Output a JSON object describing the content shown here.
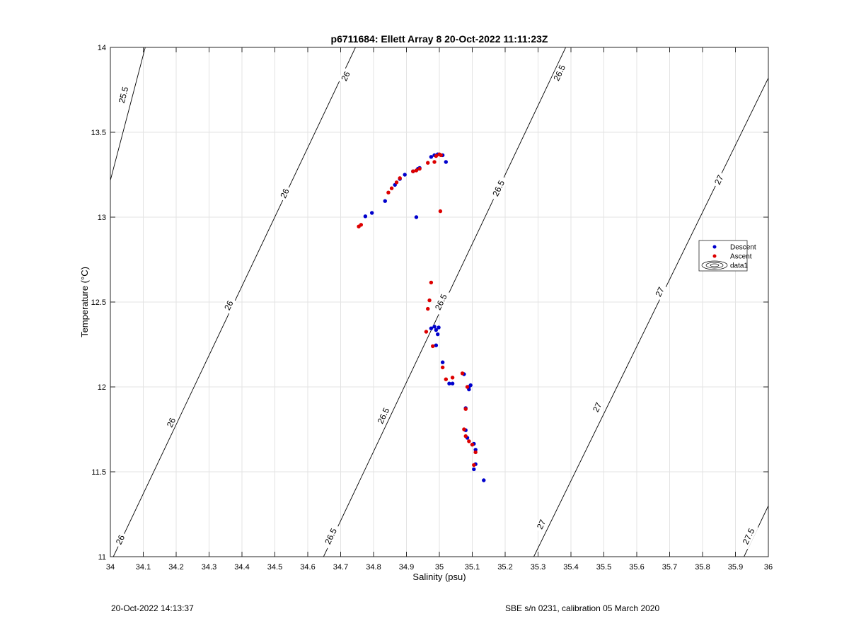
{
  "chart_data": {
    "type": "scatter",
    "title": "p6711684: Ellett Array 8 20-Oct-2022 11:11:23Z",
    "xlabel": "Salinity (psu)",
    "ylabel": "Temperature (°C)",
    "xlim": [
      34,
      36
    ],
    "ylim": [
      11,
      14
    ],
    "xticks": [
      "34",
      "34.1",
      "34.2",
      "34.3",
      "34.4",
      "34.5",
      "34.6",
      "34.7",
      "34.8",
      "34.9",
      "35",
      "35.1",
      "35.2",
      "35.3",
      "35.4",
      "35.5",
      "35.6",
      "35.7",
      "35.8",
      "35.9",
      "36"
    ],
    "yticks": [
      "11",
      "11.5",
      "12",
      "12.5",
      "13",
      "13.5",
      "14"
    ],
    "grid": true,
    "legend_position": "right",
    "series": [
      {
        "name": "Descent",
        "color": "#0000cc",
        "points": [
          [
            34.775,
            13.005
          ],
          [
            34.795,
            13.025
          ],
          [
            34.835,
            13.095
          ],
          [
            34.865,
            13.19
          ],
          [
            34.88,
            13.225
          ],
          [
            34.895,
            13.25
          ],
          [
            34.92,
            13.27
          ],
          [
            34.935,
            13.285
          ],
          [
            34.94,
            13.29
          ],
          [
            34.975,
            13.355
          ],
          [
            34.985,
            13.365
          ],
          [
            34.995,
            13.37
          ],
          [
            35.01,
            13.365
          ],
          [
            35.02,
            13.325
          ],
          [
            34.93,
            13.0
          ],
          [
            34.975,
            12.345
          ],
          [
            34.985,
            12.355
          ],
          [
            34.99,
            12.335
          ],
          [
            34.995,
            12.31
          ],
          [
            34.998,
            12.35
          ],
          [
            34.99,
            12.245
          ],
          [
            35.01,
            12.145
          ],
          [
            35.03,
            12.02
          ],
          [
            35.04,
            12.02
          ],
          [
            35.075,
            12.075
          ],
          [
            35.09,
            12.0
          ],
          [
            35.095,
            12.01
          ],
          [
            35.09,
            11.985
          ],
          [
            35.08,
            11.875
          ],
          [
            35.08,
            11.745
          ],
          [
            35.085,
            11.7
          ],
          [
            35.1,
            11.66
          ],
          [
            35.105,
            11.665
          ],
          [
            35.11,
            11.63
          ],
          [
            35.105,
            11.515
          ],
          [
            35.11,
            11.545
          ],
          [
            35.135,
            11.45
          ]
        ]
      },
      {
        "name": "Ascent",
        "color": "#dd0000",
        "points": [
          [
            34.755,
            12.945
          ],
          [
            34.762,
            12.955
          ],
          [
            34.845,
            13.145
          ],
          [
            34.855,
            13.17
          ],
          [
            34.87,
            13.205
          ],
          [
            34.88,
            13.23
          ],
          [
            34.92,
            13.27
          ],
          [
            34.93,
            13.275
          ],
          [
            34.94,
            13.285
          ],
          [
            34.965,
            13.32
          ],
          [
            34.985,
            13.325
          ],
          [
            34.99,
            13.36
          ],
          [
            35.0,
            13.37
          ],
          [
            35.005,
            13.365
          ],
          [
            35.003,
            13.035
          ],
          [
            34.975,
            12.615
          ],
          [
            34.97,
            12.51
          ],
          [
            34.965,
            12.46
          ],
          [
            34.96,
            12.325
          ],
          [
            34.98,
            12.24
          ],
          [
            35.01,
            12.115
          ],
          [
            35.02,
            12.045
          ],
          [
            35.04,
            12.055
          ],
          [
            35.07,
            12.08
          ],
          [
            35.085,
            12.0
          ],
          [
            35.08,
            11.87
          ],
          [
            35.075,
            11.75
          ],
          [
            35.08,
            11.71
          ],
          [
            35.09,
            11.68
          ],
          [
            35.1,
            11.66
          ],
          [
            35.11,
            11.615
          ],
          [
            35.105,
            11.54
          ]
        ]
      }
    ],
    "contours": [
      {
        "level": "25.5",
        "t_low": 11,
        "s_low": 33.7,
        "t_high": 14,
        "s_high": 34.106
      },
      {
        "level": "26",
        "t_low": 11,
        "s_low": 34.009,
        "t_high": 14,
        "s_high": 34.745
      },
      {
        "level": "26.5",
        "t_low": 11,
        "s_low": 34.648,
        "t_high": 14,
        "s_high": 35.384
      },
      {
        "level": "27",
        "t_low": 11,
        "s_low": 35.287,
        "t_high": 13.82,
        "s_high": 36.0
      },
      {
        "level": "27.5",
        "t_low": 11,
        "s_low": 35.926,
        "t_high": 11.3,
        "s_high": 36.0
      }
    ],
    "contour_labels": [
      {
        "text": "25.5",
        "s": 34.04,
        "t": 13.72
      },
      {
        "text": "26",
        "s": 34.715,
        "t": 13.83
      },
      {
        "text": "26",
        "s": 34.53,
        "t": 13.14
      },
      {
        "text": "26",
        "s": 34.36,
        "t": 12.48
      },
      {
        "text": "26",
        "s": 34.185,
        "t": 11.79
      },
      {
        "text": "26",
        "s": 34.03,
        "t": 11.1
      },
      {
        "text": "26.5",
        "s": 35.365,
        "t": 13.85
      },
      {
        "text": "26.5",
        "s": 35.18,
        "t": 13.17
      },
      {
        "text": "26.5",
        "s": 35.005,
        "t": 12.5
      },
      {
        "text": "26.5",
        "s": 34.83,
        "t": 11.83
      },
      {
        "text": "26.5",
        "s": 34.67,
        "t": 11.12
      },
      {
        "text": "27",
        "s": 35.85,
        "t": 13.22
      },
      {
        "text": "27",
        "s": 35.67,
        "t": 12.56
      },
      {
        "text": "27",
        "s": 35.48,
        "t": 11.88
      },
      {
        "text": "27",
        "s": 35.31,
        "t": 11.19
      },
      {
        "text": "27.5",
        "s": 35.94,
        "t": 11.12
      }
    ],
    "legend": {
      "items": [
        {
          "label": "Descent",
          "color": "#0000cc",
          "marker": "dot"
        },
        {
          "label": "Ascent",
          "color": "#dd0000",
          "marker": "dot"
        },
        {
          "label": "data1",
          "color": "#000000",
          "marker": "contour"
        }
      ]
    }
  },
  "footer": {
    "left": "20-Oct-2022 14:13:37",
    "right": "SBE s/n 0231, calibration 05 March 2020"
  }
}
